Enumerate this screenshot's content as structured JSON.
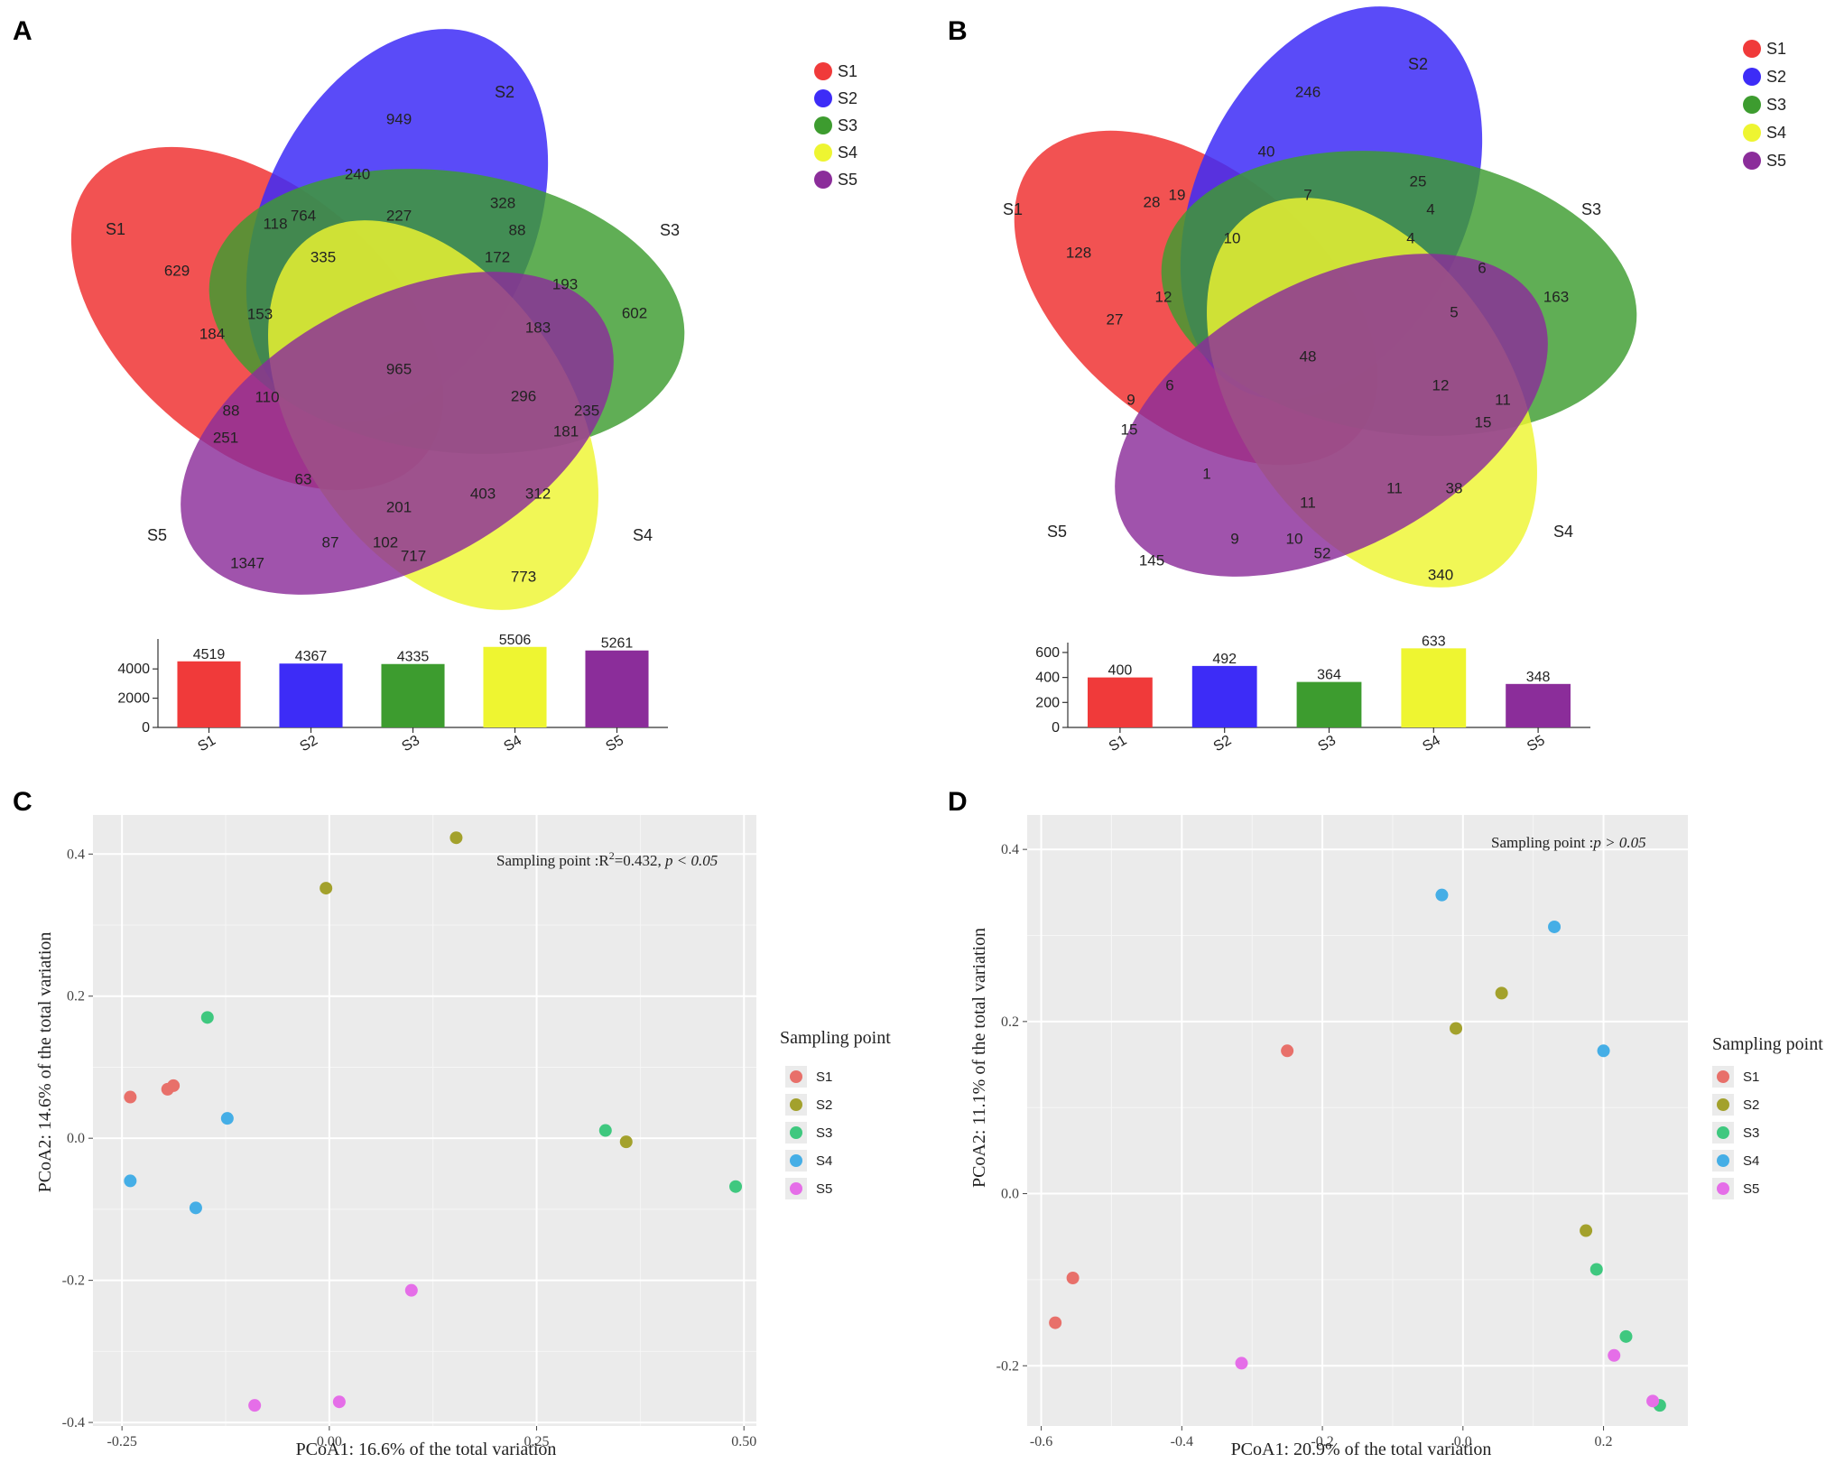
{
  "panels": {
    "A": "A",
    "B": "B",
    "C": "C",
    "D": "D"
  },
  "colors": {
    "S1": "#f03a3a",
    "S2": "#3d2cf7",
    "S3": "#3d9c2f",
    "S4": "#eef531",
    "S5": "#8b2d9a"
  },
  "pcoa_colors": {
    "S1": "#e8706a",
    "S2": "#a3a12c",
    "S3": "#3fc87f",
    "S4": "#45aee6",
    "S5": "#e56ee8"
  },
  "chart_data": [
    {
      "type": "venn",
      "panel": "A",
      "sets": [
        "S1",
        "S2",
        "S3",
        "S4",
        "S5"
      ],
      "legend": [
        "S1",
        "S2",
        "S3",
        "S4",
        "S5"
      ],
      "region_labels": [
        "949",
        "240",
        "328",
        "227",
        "88",
        "335",
        "172",
        "193",
        "602",
        "183",
        "629",
        "764",
        "184",
        "153",
        "965",
        "296",
        "235",
        "110",
        "88",
        "251",
        "181",
        "63",
        "201",
        "403",
        "312",
        "1347",
        "87",
        "102",
        "717",
        "773",
        "118"
      ],
      "bars": {
        "categories": [
          "S1",
          "S2",
          "S3",
          "S4",
          "S5"
        ],
        "values": [
          4519,
          4367,
          4335,
          5506,
          5261
        ],
        "yticks": [
          "0",
          "2000",
          "4000"
        ],
        "ylim": [
          0,
          5800
        ]
      }
    },
    {
      "type": "venn",
      "panel": "B",
      "sets": [
        "S1",
        "S2",
        "S3",
        "S4",
        "S5"
      ],
      "legend": [
        "S1",
        "S2",
        "S3",
        "S4",
        "S5"
      ],
      "region_labels": [
        "246",
        "40",
        "19",
        "28",
        "7",
        "25",
        "4",
        "10",
        "4",
        "128",
        "12",
        "6",
        "163",
        "27",
        "48",
        "5",
        "12",
        "6",
        "9",
        "11",
        "15",
        "15",
        "1",
        "11",
        "11",
        "38",
        "145",
        "9",
        "10",
        "52",
        "340"
      ],
      "bars": {
        "categories": [
          "S1",
          "S2",
          "S3",
          "S4",
          "S5"
        ],
        "values": [
          400,
          492,
          364,
          633,
          348
        ],
        "yticks": [
          "0",
          "200",
          "400",
          "600"
        ],
        "ylim": [
          0,
          650
        ]
      }
    },
    {
      "type": "scatter",
      "panel": "C",
      "xlabel": "PCoA1: 16.6% of the total variation",
      "ylabel": "PCoA2: 14.6% of the total variation",
      "xlim": [
        -0.285,
        0.515
      ],
      "ylim": [
        -0.405,
        0.455
      ],
      "xticks": [
        -0.25,
        0.0,
        0.25,
        0.5
      ],
      "xtick_labels": [
        "-0.25",
        "0.00",
        "0.25",
        "0.50"
      ],
      "yticks": [
        -0.4,
        -0.2,
        0.0,
        0.2,
        0.4
      ],
      "ytick_labels": [
        "-0.4",
        "-0.2",
        "0.0",
        "0.2",
        "0.4"
      ],
      "annotation": {
        "prefix": "Sampling point :R",
        "sup": "2",
        "mid": "=0.432, ",
        "italic": "p < 0.05"
      },
      "legend_title": "Sampling point",
      "legend": [
        "S1",
        "S2",
        "S3",
        "S4",
        "S5"
      ],
      "series": [
        {
          "name": "S1",
          "points": [
            [
              -0.24,
              0.058
            ],
            [
              -0.195,
              0.069
            ],
            [
              -0.188,
              0.074
            ]
          ]
        },
        {
          "name": "S2",
          "points": [
            [
              0.153,
              0.423
            ],
            [
              -0.004,
              0.352
            ],
            [
              0.358,
              -0.005
            ]
          ]
        },
        {
          "name": "S3",
          "points": [
            [
              -0.147,
              0.17
            ],
            [
              0.333,
              0.011
            ],
            [
              0.49,
              -0.068
            ]
          ]
        },
        {
          "name": "S4",
          "points": [
            [
              -0.123,
              0.028
            ],
            [
              -0.24,
              -0.06
            ],
            [
              -0.161,
              -0.098
            ]
          ]
        },
        {
          "name": "S5",
          "points": [
            [
              0.099,
              -0.214
            ],
            [
              -0.09,
              -0.376
            ],
            [
              0.012,
              -0.371
            ]
          ]
        }
      ]
    },
    {
      "type": "scatter",
      "panel": "D",
      "xlabel": "PCoA1: 20.9% of the total variation",
      "ylabel": "PCoA2: 11.1% of the total variation",
      "xlim": [
        -0.62,
        0.32
      ],
      "ylim": [
        -0.27,
        0.44
      ],
      "xticks": [
        -0.6,
        -0.4,
        -0.2,
        0.0,
        0.2
      ],
      "xtick_labels": [
        "-0.6",
        "-0.4",
        "-0.2",
        "0.0",
        "0.2"
      ],
      "yticks": [
        -0.2,
        0.0,
        0.2,
        0.4
      ],
      "ytick_labels": [
        "-0.2",
        "0.0",
        "0.2",
        "0.4"
      ],
      "annotation": {
        "prefix": "Sampling point :",
        "sup": "",
        "mid": "",
        "italic": "p > 0.05"
      },
      "legend_title": "Sampling point",
      "legend": [
        "S1",
        "S2",
        "S3",
        "S4",
        "S5"
      ],
      "series": [
        {
          "name": "S1",
          "points": [
            [
              -0.25,
              0.166
            ],
            [
              -0.555,
              -0.098
            ],
            [
              -0.58,
              -0.15
            ]
          ]
        },
        {
          "name": "S2",
          "points": [
            [
              0.055,
              0.233
            ],
            [
              -0.01,
              0.192
            ],
            [
              0.175,
              -0.043
            ]
          ]
        },
        {
          "name": "S3",
          "points": [
            [
              0.19,
              -0.088
            ],
            [
              0.232,
              -0.166
            ],
            [
              0.28,
              -0.246
            ]
          ]
        },
        {
          "name": "S4",
          "points": [
            [
              -0.03,
              0.347
            ],
            [
              0.13,
              0.31
            ],
            [
              0.2,
              0.166
            ]
          ]
        },
        {
          "name": "S5",
          "points": [
            [
              -0.315,
              -0.197
            ],
            [
              0.215,
              -0.188
            ],
            [
              0.27,
              -0.241
            ]
          ]
        }
      ]
    }
  ]
}
